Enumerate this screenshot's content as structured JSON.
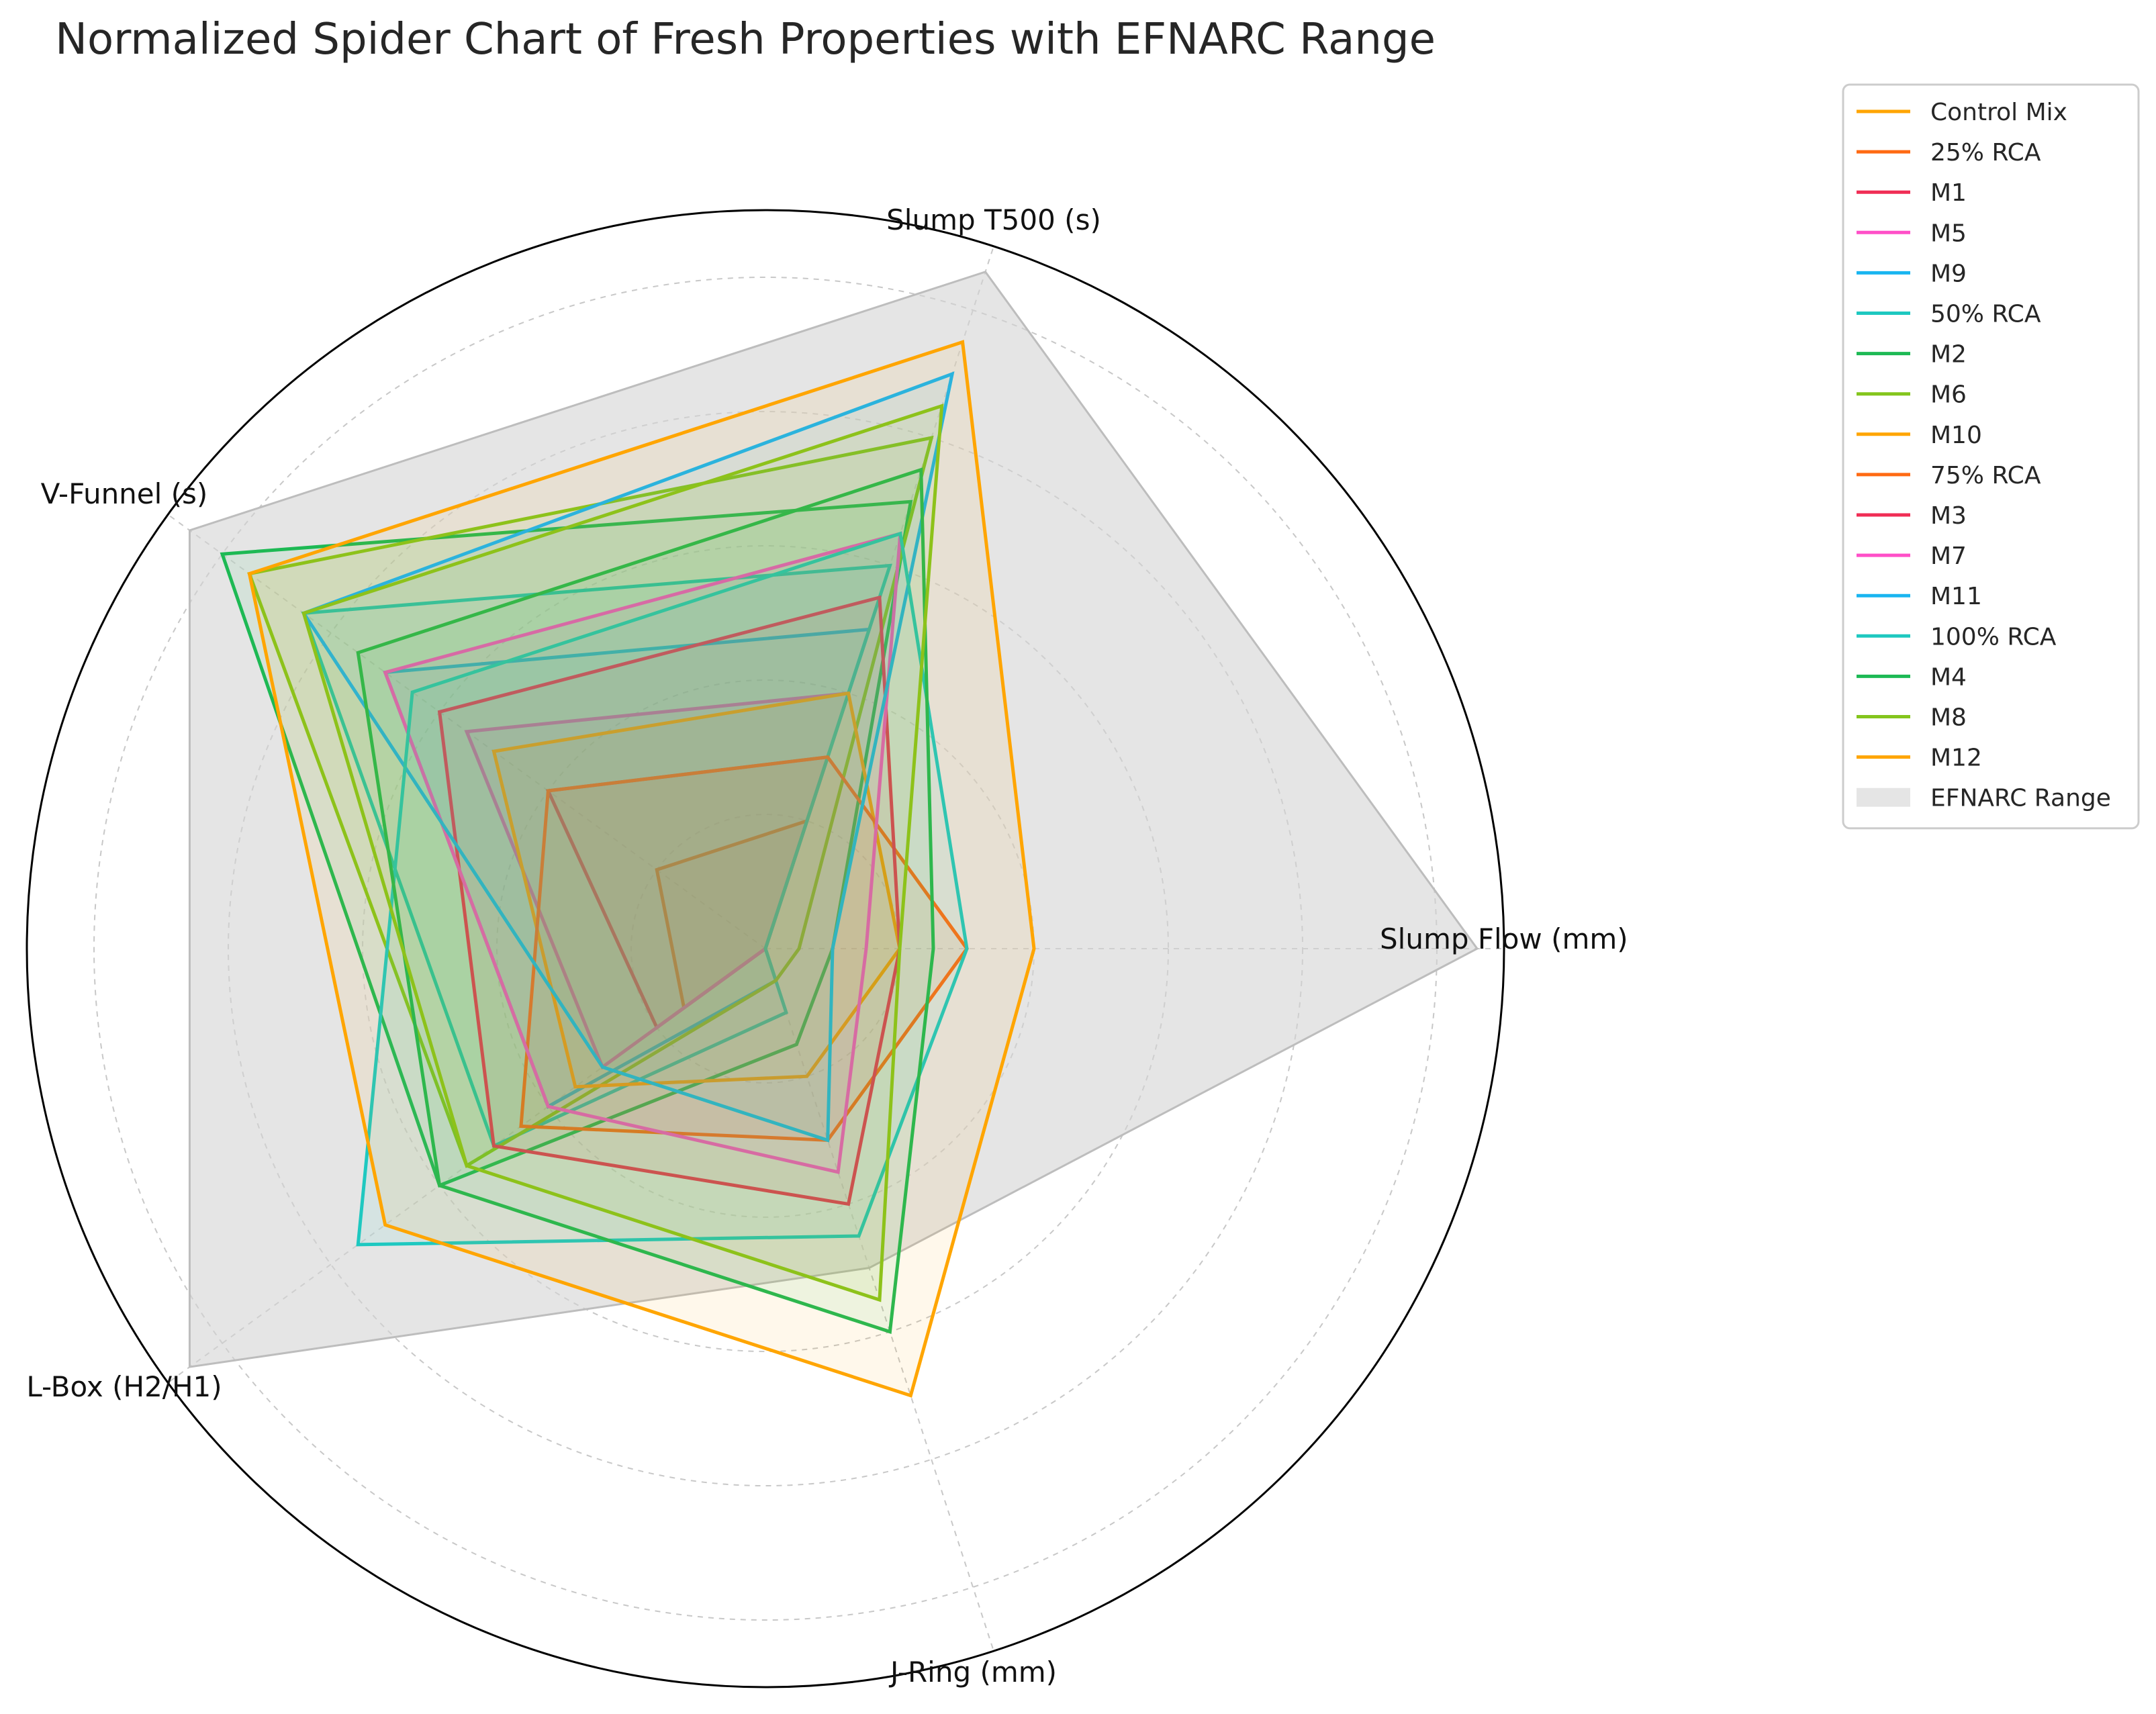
{
  "chart_data": {
    "type": "radar",
    "title": "Normalized Spider Chart of Fresh Properties with EFNARC Range",
    "axes": [
      "Slump Flow (mm)",
      "Slump T500 (s)",
      "V-Funnel (s)",
      "L-Box (H2/H1)",
      "J-Ring (mm)"
    ],
    "rlim": [
      0,
      1.1
    ],
    "grid": true,
    "legend_position": "right",
    "range_band": {
      "name": "EFNARC Range",
      "color": "#d3d3d3",
      "values": [
        1.06,
        1.06,
        1.06,
        1.06,
        0.5
      ]
    },
    "series": [
      {
        "name": "Control Mix",
        "color": "#ffa500",
        "values": [
          0.0,
          0.0,
          0.0,
          0.0,
          0.0
        ]
      },
      {
        "name": "25% RCA",
        "color": "#ff6a13",
        "values": [
          0.0,
          0.2,
          0.2,
          0.15,
          0.0
        ]
      },
      {
        "name": "M1",
        "color": "#f02d55",
        "values": [
          0.0,
          0.3,
          0.4,
          0.2,
          0.0
        ]
      },
      {
        "name": "M5",
        "color": "#ff4fc8",
        "values": [
          0.0,
          0.4,
          0.55,
          0.3,
          0.0
        ]
      },
      {
        "name": "M9",
        "color": "#19b5f0",
        "values": [
          0.0,
          0.5,
          0.7,
          0.4,
          0.05
        ]
      },
      {
        "name": "50% RCA",
        "color": "#1ec8c0",
        "values": [
          0.0,
          0.6,
          0.85,
          0.5,
          0.1
        ]
      },
      {
        "name": "M2",
        "color": "#1db954",
        "values": [
          0.1,
          0.7,
          1.0,
          0.6,
          0.15
        ]
      },
      {
        "name": "M6",
        "color": "#84c51d",
        "values": [
          0.05,
          0.8,
          0.95,
          0.55,
          0.05
        ]
      },
      {
        "name": "M10",
        "color": "#ffa500",
        "values": [
          0.2,
          0.4,
          0.5,
          0.35,
          0.2
        ]
      },
      {
        "name": "75% RCA",
        "color": "#ff6a13",
        "values": [
          0.3,
          0.3,
          0.4,
          0.45,
          0.3
        ]
      },
      {
        "name": "M3",
        "color": "#f02d55",
        "values": [
          0.2,
          0.55,
          0.6,
          0.5,
          0.4
        ]
      },
      {
        "name": "M7",
        "color": "#ff4fc8",
        "values": [
          0.15,
          0.65,
          0.7,
          0.4,
          0.35
        ]
      },
      {
        "name": "M11",
        "color": "#19b5f0",
        "values": [
          0.1,
          0.9,
          0.85,
          0.3,
          0.3
        ]
      },
      {
        "name": "100% RCA",
        "color": "#1ec8c0",
        "values": [
          0.3,
          0.65,
          0.65,
          0.75,
          0.45
        ]
      },
      {
        "name": "M4",
        "color": "#1db954",
        "values": [
          0.25,
          0.75,
          0.75,
          0.6,
          0.6
        ]
      },
      {
        "name": "M8",
        "color": "#84c51d",
        "values": [
          0.2,
          0.85,
          0.85,
          0.55,
          0.55
        ]
      },
      {
        "name": "M12",
        "color": "#ffa500",
        "values": [
          0.4,
          0.95,
          0.95,
          0.7,
          0.7
        ]
      }
    ]
  }
}
